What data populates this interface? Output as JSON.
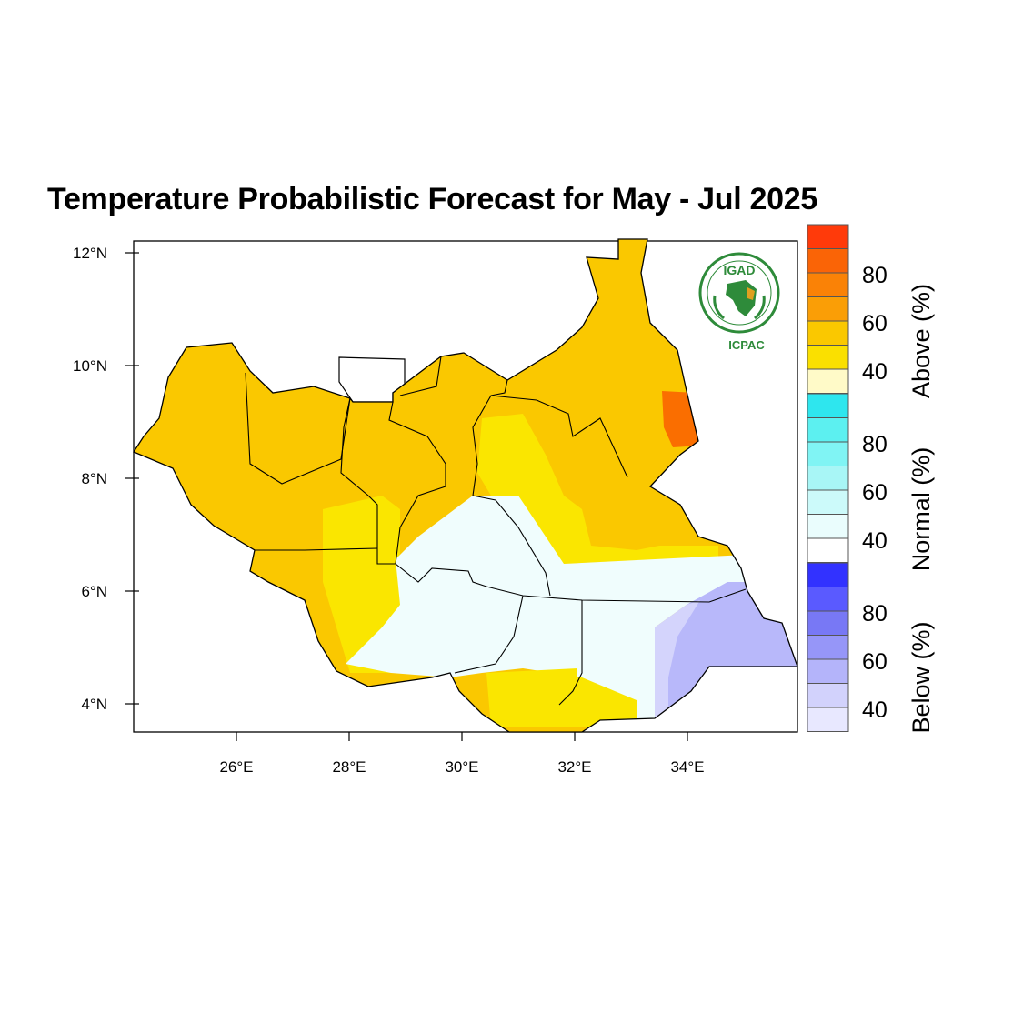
{
  "title": "Temperature Probabilistic Forecast for May - Jul 2025",
  "axes": {
    "lat_ticks": [
      "12°N",
      "10°N",
      "8°N",
      "6°N",
      "4°N"
    ],
    "lon_ticks": [
      "26°E",
      "28°E",
      "30°E",
      "32°E",
      "34°E"
    ]
  },
  "logo": {
    "org": "IGAD",
    "sub": "ICPAC"
  },
  "legend": {
    "above": {
      "label": "Above (%)",
      "ticks": [
        "80",
        "60",
        "40"
      ],
      "colors": [
        "#ff3a0a",
        "#fa6406",
        "#fa8206",
        "#fa9e06",
        "#fac800",
        "#fae000",
        "#fffac8"
      ]
    },
    "normal": {
      "label": "Normal (%)",
      "ticks": [
        "80",
        "60",
        "40"
      ],
      "colors": [
        "#2ee6ee",
        "#5cf0f0",
        "#80f4f4",
        "#a8f6f6",
        "#ccfafa",
        "#eafdfd",
        "#ffffff"
      ]
    },
    "below": {
      "label": "Below (%)",
      "ticks": [
        "80",
        "60",
        "40"
      ],
      "colors": [
        "#3232ff",
        "#5a5aff",
        "#7878f5",
        "#9696f8",
        "#b4b4fa",
        "#d2d2fc",
        "#e8e8ff"
      ]
    }
  },
  "map_colors": {
    "above_dominant": "#fac800",
    "above_light": "#fae600",
    "above_high": "#fa6e00",
    "normal": "#f0fdfd",
    "below": "#b8b8fa",
    "below_light": "#d4d4fc"
  }
}
